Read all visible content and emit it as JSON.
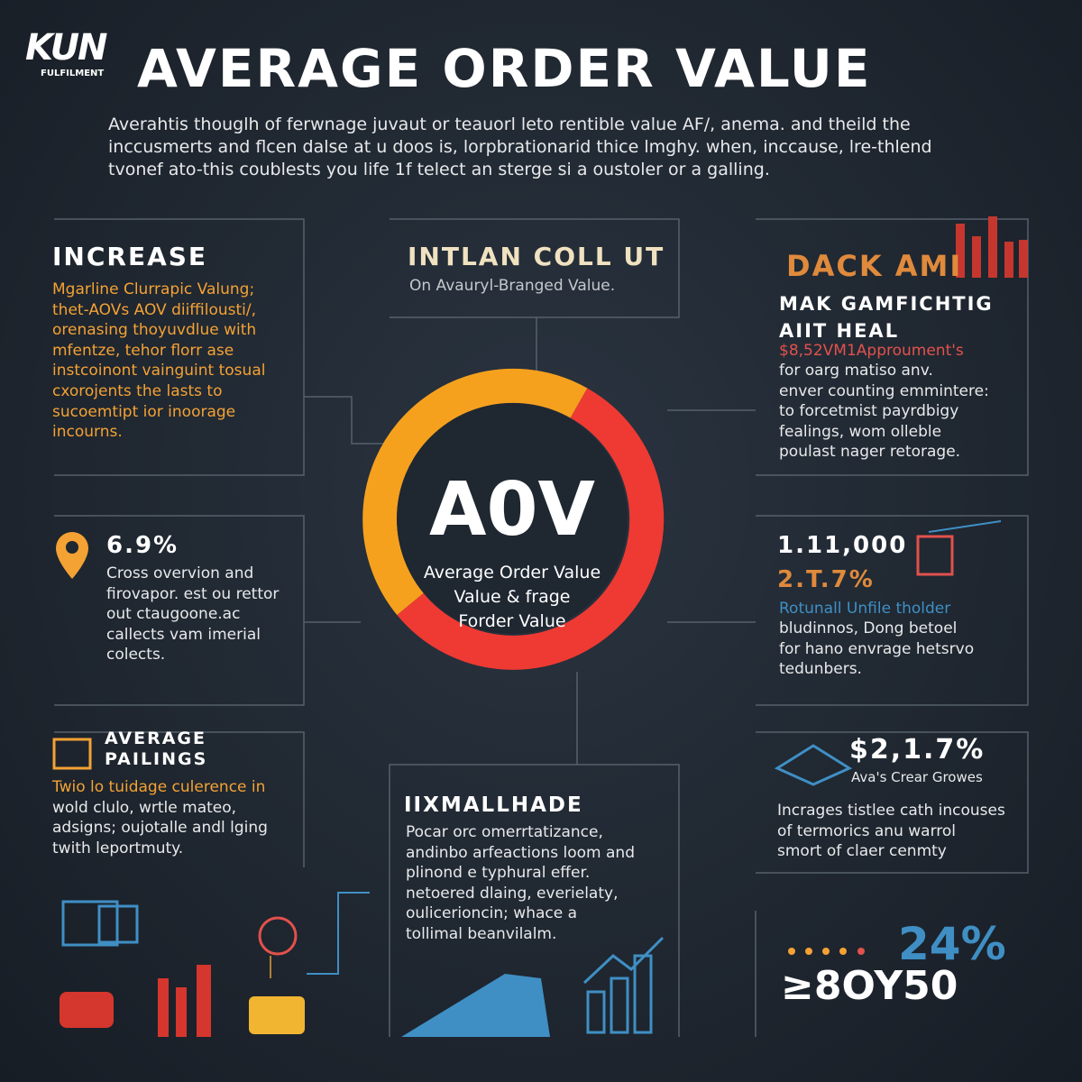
{
  "header": {
    "logo": "KUN",
    "logo_sub": "FULFILMENT",
    "title": "AVERAGE ORDER VALUE",
    "intro": [
      "Averahtis thouglh of ferwnage juvaut or teauorl leto rentible value AF/, anema. and theild the",
      "inccusmerts and flcen dalse at u doos is, lorpbrationarid thice lmghy. when, inccause, lre-thlend",
      "tvonef ato-this coublests you life 1f telect an sterge si a oustoler or a galling."
    ]
  },
  "center": {
    "label": "A0V",
    "lines": [
      "Average Order Value",
      "Value & frage",
      "Forder Value"
    ]
  },
  "panels": {
    "increase": {
      "title": "INCREASE",
      "lines": [
        "Mgarline Clurrapic Valung;",
        "thet-AOVs AOV diiffilousti/,",
        "orenasing thoyuvdlue with",
        "mfentze, tehor florr ase",
        "instcoinont vainguint tosual",
        "cxorojents the lasts to",
        "sucoemtipt ior inoorage",
        "incourns."
      ]
    },
    "intlan": {
      "title": "INTLAN COLL UT",
      "subtitle": "On Avauryl-Branged Value."
    },
    "dack": {
      "banner": "DACK AMI",
      "title": [
        "MAK GAMFICHTIG",
        "AIIT HEAL"
      ],
      "highlight": "$8,52VM1Approument's",
      "lines": [
        "for oarg matiso anv.",
        "enver counting emmintere:",
        "to forcetmist payrdbigy",
        "fealings, wom olleble",
        "poulast nager retorage."
      ]
    },
    "pin": {
      "stat": "6.9%",
      "lines": [
        "Cross overvion and",
        "firovapor. est ou rettor",
        "out ctaugoone.ac",
        "callects vam imerial",
        "colects."
      ]
    },
    "stats": {
      "stat": "1.11,000",
      "stat2": "2.T.7%",
      "subtitle": "Rotunall Unfile tholder",
      "lines": [
        "bludinnos, Dong betoel",
        "for hano envrage hetsrvo",
        "tedunbers."
      ]
    },
    "pailings": {
      "title": [
        "AVERAGE",
        "PAILINGS"
      ],
      "lines": [
        "Twio lo tuidage culerence in",
        "wold clulo, wrtle mateo,",
        "adsigns; oujotalle andl lging",
        "twith leportmuty."
      ]
    },
    "mallhade": {
      "title": "IIXMALLHADE",
      "lines": [
        "Pocar orc omerrtatizance,",
        "andinbo arfeactions loom and",
        "plinond e typhural effer.",
        "netoered dlaing, everielaty,",
        "oulicerioncin; whace a",
        "tollimal beanvilalm."
      ]
    },
    "growth": {
      "stat": "$2,1.7%",
      "subtitle": "Ava's Crear Growes",
      "lines": [
        "Incrages tistlee cath incouses",
        "of termorics anu warrol",
        "smort of claer cenmty"
      ]
    },
    "footer_stats": {
      "stat": "24%",
      "stat2": "≥8OY50"
    }
  }
}
